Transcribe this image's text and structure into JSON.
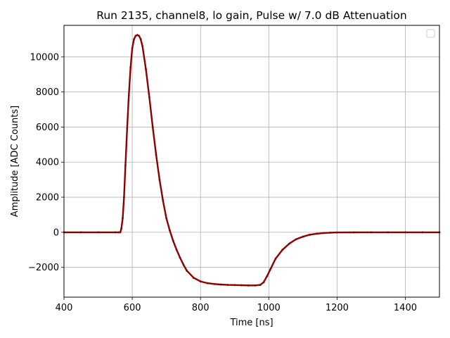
{
  "chart_data": {
    "type": "scatter",
    "title": "Run 2135, channel8, lo gain, Pulse w/ 7.0 dB Attenuation",
    "xlabel": "Time [ns]",
    "ylabel": "Amplitude [ADC Counts]",
    "xlim": [
      400,
      1500
    ],
    "ylim": [
      -3700,
      11800
    ],
    "x_ticks": [
      400,
      600,
      800,
      1000,
      1200,
      1400
    ],
    "y_ticks": [
      -2000,
      0,
      2000,
      4000,
      6000,
      8000,
      10000
    ],
    "x_tick_labels": [
      "400",
      "600",
      "800",
      "1000",
      "1200",
      "1400"
    ],
    "y_tick_labels": [
      "−2000",
      "0",
      "2000",
      "4000",
      "6000",
      "8000",
      "10000"
    ],
    "grid": true,
    "legend": {
      "placement": "top-right",
      "entries": []
    },
    "series": [
      {
        "color": "#8b0000",
        "x": [
          400,
          450,
          500,
          550,
          560,
          565,
          568,
          572,
          576,
          580,
          585,
          590,
          595,
          600,
          605,
          610,
          615,
          620,
          625,
          630,
          640,
          650,
          660,
          670,
          680,
          690,
          700,
          710,
          720,
          730,
          740,
          750,
          760,
          780,
          800,
          820,
          840,
          860,
          880,
          900,
          920,
          940,
          960,
          975,
          985,
          995,
          1005,
          1020,
          1040,
          1060,
          1080,
          1100,
          1120,
          1140,
          1160,
          1180,
          1200,
          1250,
          1300,
          1350,
          1400,
          1450,
          1500
        ],
        "y": [
          0,
          0,
          0,
          0,
          0,
          0,
          200,
          800,
          2000,
          3800,
          5900,
          7800,
          9400,
          10500,
          11000,
          11200,
          11250,
          11200,
          11000,
          10600,
          9300,
          7700,
          6000,
          4400,
          3000,
          1800,
          800,
          100,
          -500,
          -1000,
          -1450,
          -1850,
          -2200,
          -2600,
          -2800,
          -2900,
          -2950,
          -2980,
          -3000,
          -3010,
          -3020,
          -3030,
          -3030,
          -3000,
          -2850,
          -2500,
          -2100,
          -1500,
          -1000,
          -650,
          -400,
          -250,
          -140,
          -80,
          -40,
          -20,
          -10,
          -5,
          -2,
          0,
          0,
          0,
          0
        ]
      }
    ]
  }
}
